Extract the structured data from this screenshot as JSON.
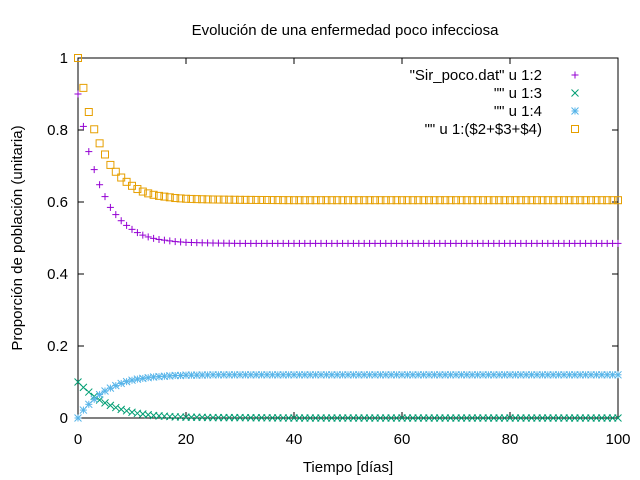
{
  "chart_data": {
    "type": "scatter",
    "title": "Evolución de una enfermedad poco infecciosa",
    "xlabel": "Tiempo [días]",
    "ylabel": "Proporción de población (unitaria)",
    "xlim": [
      0,
      100
    ],
    "ylim": [
      0,
      1
    ],
    "xticks": [
      "0",
      "20",
      "40",
      "60",
      "80",
      "100"
    ],
    "yticks": [
      "0",
      "0.2",
      "0.4",
      "0.6",
      "0.8",
      "1"
    ],
    "grid": false,
    "legend": "top-right",
    "series": [
      {
        "name": "\"Sir_poco.dat\" u 1:2",
        "marker": "plus",
        "color": "#9400d3",
        "x": [
          0,
          1,
          2,
          3,
          4,
          5,
          6,
          7,
          8,
          9,
          10,
          11,
          12,
          13,
          14,
          15,
          16,
          17,
          18,
          19,
          20,
          22,
          25,
          30,
          40,
          50,
          60,
          70,
          80,
          90,
          100
        ],
        "y": [
          0.9,
          0.81,
          0.74,
          0.69,
          0.648,
          0.615,
          0.585,
          0.565,
          0.548,
          0.535,
          0.524,
          0.515,
          0.508,
          0.503,
          0.499,
          0.496,
          0.494,
          0.492,
          0.49,
          0.489,
          0.488,
          0.487,
          0.486,
          0.485,
          0.485,
          0.485,
          0.485,
          0.485,
          0.485,
          0.485,
          0.485
        ]
      },
      {
        "name": "\"\" u 1:3",
        "marker": "cross",
        "color": "#009e73",
        "x": [
          0,
          1,
          2,
          3,
          4,
          5,
          6,
          7,
          8,
          9,
          10,
          11,
          12,
          13,
          14,
          15,
          16,
          17,
          18,
          19,
          20,
          22,
          25,
          30,
          40,
          50,
          60,
          70,
          80,
          90,
          100
        ],
        "y": [
          0.1,
          0.085,
          0.072,
          0.06,
          0.05,
          0.042,
          0.035,
          0.029,
          0.024,
          0.02,
          0.016,
          0.013,
          0.011,
          0.009,
          0.007,
          0.006,
          0.005,
          0.004,
          0.003,
          0.003,
          0.002,
          0.002,
          0.001,
          0.001,
          0,
          0,
          0,
          0,
          0,
          0,
          0
        ]
      },
      {
        "name": "\"\" u 1:4",
        "marker": "star",
        "color": "#56b4e9",
        "x": [
          0,
          1,
          2,
          3,
          4,
          5,
          6,
          7,
          8,
          9,
          10,
          11,
          12,
          13,
          14,
          15,
          16,
          17,
          18,
          19,
          20,
          22,
          25,
          30,
          40,
          50,
          60,
          70,
          80,
          90,
          100
        ],
        "y": [
          0,
          0.022,
          0.038,
          0.052,
          0.065,
          0.075,
          0.083,
          0.09,
          0.096,
          0.101,
          0.105,
          0.108,
          0.11,
          0.112,
          0.114,
          0.115,
          0.116,
          0.117,
          0.118,
          0.118,
          0.119,
          0.119,
          0.12,
          0.12,
          0.12,
          0.12,
          0.12,
          0.12,
          0.12,
          0.12,
          0.12
        ]
      },
      {
        "name": "\"\" u 1:($2+$3+$4)",
        "marker": "square",
        "color": "#e69f00",
        "x": [
          0,
          1,
          2,
          3,
          4,
          5,
          6,
          7,
          8,
          9,
          10,
          11,
          12,
          13,
          14,
          15,
          16,
          17,
          18,
          19,
          20,
          22,
          25,
          30,
          40,
          50,
          60,
          70,
          80,
          90,
          100
        ],
        "y": [
          1,
          0.917,
          0.85,
          0.802,
          0.763,
          0.732,
          0.703,
          0.684,
          0.668,
          0.656,
          0.645,
          0.636,
          0.629,
          0.624,
          0.62,
          0.617,
          0.615,
          0.613,
          0.611,
          0.61,
          0.609,
          0.608,
          0.607,
          0.606,
          0.605,
          0.605,
          0.605,
          0.605,
          0.605,
          0.605,
          0.605
        ]
      }
    ]
  }
}
